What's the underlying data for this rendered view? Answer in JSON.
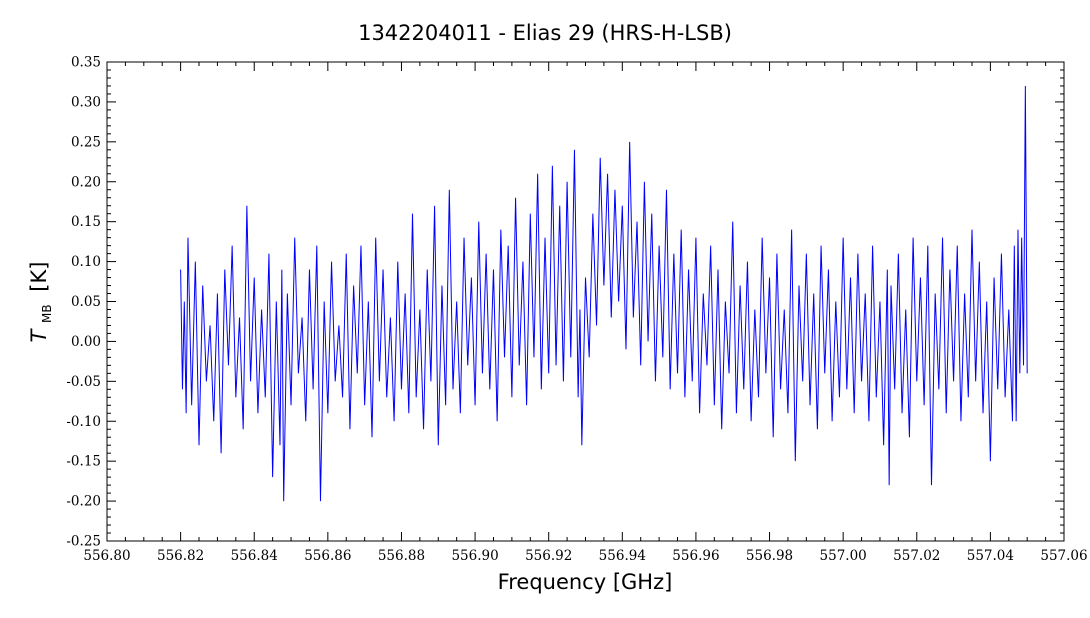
{
  "chart_data": {
    "type": "line",
    "title": "1342204011 - Elias 29 (HRS-H-LSB)",
    "xlabel": "Frequency [GHz]",
    "ylabel_main": "T",
    "ylabel_sub": "MB",
    "ylabel_unit": "[K]",
    "xlim": [
      556.8,
      557.06
    ],
    "ylim": [
      -0.25,
      0.35
    ],
    "x_ticks": [
      "556.80",
      "556.82",
      "556.84",
      "556.86",
      "556.88",
      "556.90",
      "556.92",
      "556.94",
      "556.96",
      "556.98",
      "557.00",
      "557.02",
      "557.04",
      "557.06"
    ],
    "y_ticks": [
      "0.35",
      "0.30",
      "0.25",
      "0.20",
      "0.15",
      "0.10",
      "0.05",
      "0.00",
      "-0.05",
      "-0.10",
      "-0.15",
      "-0.20",
      "-0.25"
    ],
    "grid": false,
    "series": [
      {
        "color": "#0000ff",
        "x_start": 556.82,
        "x_end": 557.05,
        "points": [
          [
            556.82,
            0.09
          ],
          [
            556.8205,
            -0.06
          ],
          [
            556.821,
            0.05
          ],
          [
            556.8215,
            -0.09
          ],
          [
            556.822,
            0.13
          ],
          [
            556.823,
            -0.08
          ],
          [
            556.824,
            0.1
          ],
          [
            556.825,
            -0.13
          ],
          [
            556.826,
            0.07
          ],
          [
            556.827,
            -0.05
          ],
          [
            556.828,
            0.02
          ],
          [
            556.829,
            -0.1
          ],
          [
            556.83,
            0.06
          ],
          [
            556.831,
            -0.14
          ],
          [
            556.832,
            0.09
          ],
          [
            556.833,
            -0.03
          ],
          [
            556.834,
            0.12
          ],
          [
            556.835,
            -0.07
          ],
          [
            556.836,
            0.03
          ],
          [
            556.837,
            -0.11
          ],
          [
            556.838,
            0.17
          ],
          [
            556.839,
            -0.05
          ],
          [
            556.84,
            0.08
          ],
          [
            556.841,
            -0.09
          ],
          [
            556.842,
            0.04
          ],
          [
            556.843,
            -0.07
          ],
          [
            556.844,
            0.11
          ],
          [
            556.845,
            -0.17
          ],
          [
            556.846,
            0.05
          ],
          [
            556.847,
            -0.13
          ],
          [
            556.8475,
            0.09
          ],
          [
            556.848,
            -0.2
          ],
          [
            556.849,
            0.06
          ],
          [
            556.85,
            -0.08
          ],
          [
            556.851,
            0.13
          ],
          [
            556.852,
            -0.04
          ],
          [
            556.853,
            0.03
          ],
          [
            556.854,
            -0.1
          ],
          [
            556.855,
            0.09
          ],
          [
            556.856,
            -0.06
          ],
          [
            556.857,
            0.12
          ],
          [
            556.858,
            -0.2
          ],
          [
            556.859,
            0.05
          ],
          [
            556.86,
            -0.09
          ],
          [
            556.861,
            0.1
          ],
          [
            556.862,
            -0.05
          ],
          [
            556.863,
            0.02
          ],
          [
            556.864,
            -0.07
          ],
          [
            556.865,
            0.11
          ],
          [
            556.866,
            -0.11
          ],
          [
            556.867,
            0.07
          ],
          [
            556.868,
            -0.04
          ],
          [
            556.869,
            0.12
          ],
          [
            556.87,
            -0.08
          ],
          [
            556.871,
            0.05
          ],
          [
            556.872,
            -0.12
          ],
          [
            556.873,
            0.13
          ],
          [
            556.874,
            -0.05
          ],
          [
            556.875,
            0.09
          ],
          [
            556.876,
            -0.07
          ],
          [
            556.877,
            0.03
          ],
          [
            556.878,
            -0.1
          ],
          [
            556.879,
            0.1
          ],
          [
            556.88,
            -0.06
          ],
          [
            556.881,
            0.06
          ],
          [
            556.882,
            -0.09
          ],
          [
            556.883,
            0.16
          ],
          [
            556.884,
            -0.07
          ],
          [
            556.885,
            0.04
          ],
          [
            556.886,
            -0.11
          ],
          [
            556.887,
            0.09
          ],
          [
            556.888,
            -0.05
          ],
          [
            556.889,
            0.17
          ],
          [
            556.89,
            -0.13
          ],
          [
            556.891,
            0.07
          ],
          [
            556.892,
            -0.08
          ],
          [
            556.893,
            0.19
          ],
          [
            556.894,
            -0.06
          ],
          [
            556.895,
            0.05
          ],
          [
            556.896,
            -0.09
          ],
          [
            556.897,
            0.13
          ],
          [
            556.898,
            -0.03
          ],
          [
            556.899,
            0.08
          ],
          [
            556.9,
            -0.08
          ],
          [
            556.901,
            0.15
          ],
          [
            556.902,
            -0.04
          ],
          [
            556.903,
            0.11
          ],
          [
            556.904,
            -0.06
          ],
          [
            556.905,
            0.09
          ],
          [
            556.906,
            -0.1
          ],
          [
            556.907,
            0.14
          ],
          [
            556.908,
            -0.02
          ],
          [
            556.909,
            0.12
          ],
          [
            556.91,
            -0.07
          ],
          [
            556.911,
            0.18
          ],
          [
            556.912,
            -0.03
          ],
          [
            556.913,
            0.1
          ],
          [
            556.914,
            -0.08
          ],
          [
            556.915,
            0.16
          ],
          [
            556.916,
            -0.02
          ],
          [
            556.917,
            0.21
          ],
          [
            556.918,
            -0.06
          ],
          [
            556.919,
            0.13
          ],
          [
            556.92,
            -0.04
          ],
          [
            556.921,
            0.22
          ],
          [
            556.922,
            -0.03
          ],
          [
            556.923,
            0.17
          ],
          [
            556.924,
            -0.05
          ],
          [
            556.925,
            0.2
          ],
          [
            556.926,
            -0.02
          ],
          [
            556.927,
            0.24
          ],
          [
            556.928,
            -0.07
          ],
          [
            556.9285,
            0.04
          ],
          [
            556.929,
            -0.13
          ],
          [
            556.93,
            0.08
          ],
          [
            556.931,
            -0.02
          ],
          [
            556.932,
            0.16
          ],
          [
            556.933,
            0.02
          ],
          [
            556.934,
            0.23
          ],
          [
            556.935,
            0.07
          ],
          [
            556.936,
            0.21
          ],
          [
            556.937,
            0.03
          ],
          [
            556.938,
            0.19
          ],
          [
            556.939,
            0.05
          ],
          [
            556.94,
            0.17
          ],
          [
            556.941,
            -0.01
          ],
          [
            556.942,
            0.25
          ],
          [
            556.943,
            0.03
          ],
          [
            556.944,
            0.15
          ],
          [
            556.945,
            -0.03
          ],
          [
            556.946,
            0.2
          ],
          [
            556.947,
            0.0
          ],
          [
            556.948,
            0.16
          ],
          [
            556.949,
            -0.05
          ],
          [
            556.95,
            0.12
          ],
          [
            556.951,
            -0.02
          ],
          [
            556.952,
            0.19
          ],
          [
            556.953,
            -0.06
          ],
          [
            556.954,
            0.11
          ],
          [
            556.955,
            -0.04
          ],
          [
            556.956,
            0.14
          ],
          [
            556.957,
            -0.07
          ],
          [
            556.958,
            0.09
          ],
          [
            556.959,
            -0.05
          ],
          [
            556.96,
            0.13
          ],
          [
            556.961,
            -0.09
          ],
          [
            556.962,
            0.06
          ],
          [
            556.963,
            -0.03
          ],
          [
            556.964,
            0.12
          ],
          [
            556.965,
            -0.08
          ],
          [
            556.966,
            0.09
          ],
          [
            556.967,
            -0.11
          ],
          [
            556.968,
            0.05
          ],
          [
            556.969,
            -0.04
          ],
          [
            556.97,
            0.15
          ],
          [
            556.971,
            -0.09
          ],
          [
            556.972,
            0.07
          ],
          [
            556.973,
            -0.06
          ],
          [
            556.974,
            0.1
          ],
          [
            556.975,
            -0.1
          ],
          [
            556.976,
            0.04
          ],
          [
            556.977,
            -0.07
          ],
          [
            556.978,
            0.13
          ],
          [
            556.979,
            -0.04
          ],
          [
            556.98,
            0.08
          ],
          [
            556.981,
            -0.12
          ],
          [
            556.982,
            0.11
          ],
          [
            556.983,
            -0.06
          ],
          [
            556.984,
            0.04
          ],
          [
            556.985,
            -0.09
          ],
          [
            556.986,
            0.14
          ],
          [
            556.987,
            -0.15
          ],
          [
            556.988,
            0.07
          ],
          [
            556.989,
            -0.05
          ],
          [
            556.99,
            0.11
          ],
          [
            556.991,
            -0.08
          ],
          [
            556.992,
            0.06
          ],
          [
            556.993,
            -0.11
          ],
          [
            556.994,
            0.12
          ],
          [
            556.995,
            -0.04
          ],
          [
            556.996,
            0.09
          ],
          [
            556.997,
            -0.1
          ],
          [
            556.998,
            0.05
          ],
          [
            556.999,
            -0.07
          ],
          [
            557.0,
            0.13
          ],
          [
            557.001,
            -0.06
          ],
          [
            557.002,
            0.08
          ],
          [
            557.003,
            -0.09
          ],
          [
            557.004,
            0.11
          ],
          [
            557.005,
            -0.05
          ],
          [
            557.006,
            0.06
          ],
          [
            557.007,
            -0.1
          ],
          [
            557.008,
            0.12
          ],
          [
            557.009,
            -0.07
          ],
          [
            557.01,
            0.05
          ],
          [
            557.011,
            -0.13
          ],
          [
            557.012,
            0.09
          ],
          [
            557.0125,
            -0.18
          ],
          [
            557.013,
            0.07
          ],
          [
            557.014,
            -0.06
          ],
          [
            557.015,
            0.11
          ],
          [
            557.016,
            -0.09
          ],
          [
            557.017,
            0.04
          ],
          [
            557.018,
            -0.12
          ],
          [
            557.019,
            0.13
          ],
          [
            557.02,
            -0.05
          ],
          [
            557.021,
            0.08
          ],
          [
            557.022,
            -0.08
          ],
          [
            557.023,
            0.12
          ],
          [
            557.024,
            -0.18
          ],
          [
            557.025,
            0.06
          ],
          [
            557.026,
            -0.06
          ],
          [
            557.027,
            0.13
          ],
          [
            557.028,
            -0.09
          ],
          [
            557.029,
            0.09
          ],
          [
            557.03,
            -0.05
          ],
          [
            557.031,
            0.12
          ],
          [
            557.032,
            -0.1
          ],
          [
            557.033,
            0.06
          ],
          [
            557.034,
            -0.07
          ],
          [
            557.035,
            0.14
          ],
          [
            557.036,
            -0.05
          ],
          [
            557.037,
            0.1
          ],
          [
            557.038,
            -0.09
          ],
          [
            557.039,
            0.05
          ],
          [
            557.04,
            -0.15
          ],
          [
            557.041,
            0.08
          ],
          [
            557.042,
            -0.06
          ],
          [
            557.043,
            0.11
          ],
          [
            557.044,
            -0.07
          ],
          [
            557.045,
            0.04
          ],
          [
            557.046,
            -0.1
          ],
          [
            557.0465,
            0.12
          ],
          [
            557.047,
            -0.1
          ],
          [
            557.0475,
            0.14
          ],
          [
            557.048,
            -0.04
          ],
          [
            557.0485,
            0.13
          ],
          [
            557.049,
            -0.03
          ],
          [
            557.0495,
            0.32
          ],
          [
            557.05,
            -0.04
          ]
        ]
      }
    ]
  }
}
